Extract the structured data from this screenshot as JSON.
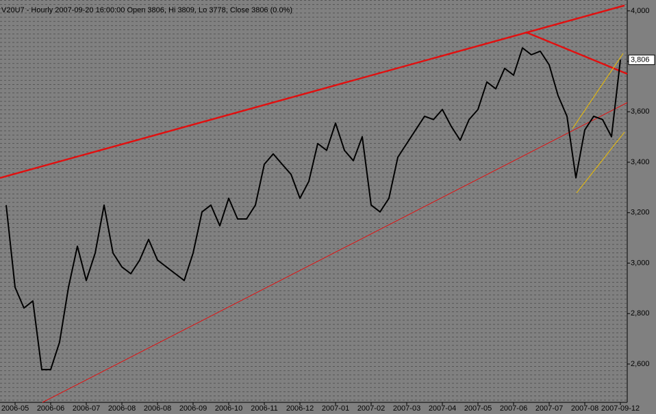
{
  "chart_data": {
    "type": "line",
    "title": "V20U7 - Hourly 2007-09-20 16:00:00 Open 3806, Hi 3809, Lo 3778, Close 3806 (0.0%)",
    "categories": [
      null,
      "2006-05",
      null,
      null,
      null,
      "2006-06",
      null,
      null,
      null,
      "2006-07",
      null,
      null,
      null,
      "2006-08",
      null,
      null,
      null,
      "2006-08",
      null,
      null,
      null,
      "2006-09",
      null,
      null,
      null,
      "2006-10",
      null,
      null,
      null,
      "2006-11",
      null,
      null,
      null,
      "2006-12",
      null,
      null,
      null,
      "2007-01",
      null,
      null,
      null,
      "2007-02",
      null,
      null,
      null,
      "2007-03",
      null,
      null,
      null,
      "2007-04",
      null,
      null,
      null,
      "2007-05",
      null,
      null,
      null,
      "2007-06",
      null,
      null,
      null,
      "2007-07",
      null,
      null,
      null,
      "2007-08",
      null,
      null,
      null,
      "2007-09-12"
    ],
    "series": [
      {
        "name": "V20U7",
        "color": "#000000",
        "values": [
          3230,
          2904,
          2822,
          2850,
          2578,
          2578,
          2687,
          2904,
          3067,
          2931,
          3040,
          3230,
          3040,
          2985,
          2958,
          3012,
          3094,
          3012,
          2985,
          2958,
          2931,
          3040,
          3203,
          3230,
          3148,
          3257,
          3175,
          3175,
          3230,
          3392,
          3433,
          3392,
          3352,
          3257,
          3324,
          3474,
          3447,
          3555,
          3447,
          3406,
          3501,
          3230,
          3203,
          3257,
          3420,
          3474,
          3528,
          3582,
          3569,
          3609,
          3542,
          3487,
          3569,
          3609,
          3718,
          3691,
          3772,
          3745,
          3853,
          3826,
          3840,
          3786,
          3664,
          3582,
          3338,
          3528,
          3582,
          3569,
          3501,
          3806
        ]
      }
    ],
    "last_price": {
      "value": 3806,
      "label": "3,806"
    },
    "ylim": [
      2448,
      4043
    ],
    "yticks": [
      {
        "value": 2600,
        "label": "2,600"
      },
      {
        "value": 2800,
        "label": "2,800"
      },
      {
        "value": 3000,
        "label": "3,000"
      },
      {
        "value": 3200,
        "label": "3,200"
      },
      {
        "value": 3400,
        "label": "3,400"
      },
      {
        "value": 3600,
        "label": "3,600"
      },
      {
        "value": 3800,
        "label": "3,800"
      },
      {
        "value": 4000,
        "label": "4,000"
      }
    ]
  }
}
